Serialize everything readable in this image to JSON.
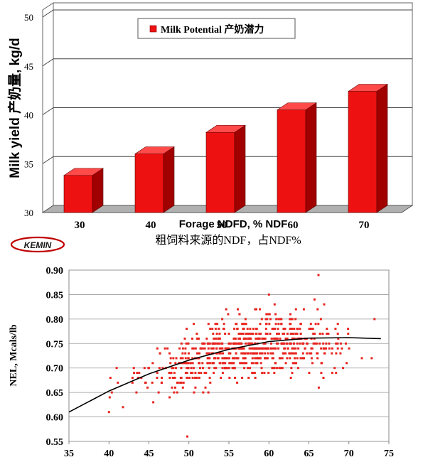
{
  "chart_data": [
    {
      "type": "bar",
      "ylabel": "Milk yield 产奶量, kg/d",
      "xlabel": "Forage NDFD, % NDF",
      "xlabel_cn": "粗饲料来源的NDF，占NDF%",
      "categories": [
        "30",
        "40",
        "50",
        "60",
        "70"
      ],
      "series": [
        {
          "name": "Milk Potential 产奶潜力",
          "values": [
            33.8,
            36.0,
            38.2,
            40.5,
            42.4
          ]
        }
      ],
      "ylim": [
        30,
        50
      ],
      "yticks": [
        30,
        35,
        40,
        45,
        50
      ],
      "grid": true,
      "legend": "top",
      "bar_color": "#ee1111",
      "bar_side_color": "#a00000",
      "bar_top_color": "#ff4a4a"
    },
    {
      "type": "scatter",
      "ylabel": "NEL, Mcals/lb",
      "xlim": [
        35,
        75
      ],
      "ylim": [
        0.55,
        0.9
      ],
      "xticks": [
        35,
        40,
        45,
        50,
        55,
        60,
        65,
        70,
        75
      ],
      "yticks": [
        "0.55",
        "0.60",
        "0.65",
        "0.70",
        "0.75",
        "0.80",
        "0.85",
        "0.90"
      ],
      "grid": true,
      "point_color": "#e8251f",
      "point_count": 750,
      "trend_line": {
        "x": [
          35,
          40,
          45,
          50,
          55,
          60,
          65,
          70,
          74
        ],
        "y": [
          0.61,
          0.653,
          0.688,
          0.716,
          0.738,
          0.754,
          0.761,
          0.762,
          0.76
        ]
      },
      "highlighted_points": [
        {
          "x": 66.2,
          "y": 0.89
        },
        {
          "x": 60.0,
          "y": 0.85
        },
        {
          "x": 49.8,
          "y": 0.56
        },
        {
          "x": 40.0,
          "y": 0.61
        },
        {
          "x": 73.2,
          "y": 0.8
        }
      ]
    }
  ],
  "logo": {
    "text": "KEMIN"
  }
}
